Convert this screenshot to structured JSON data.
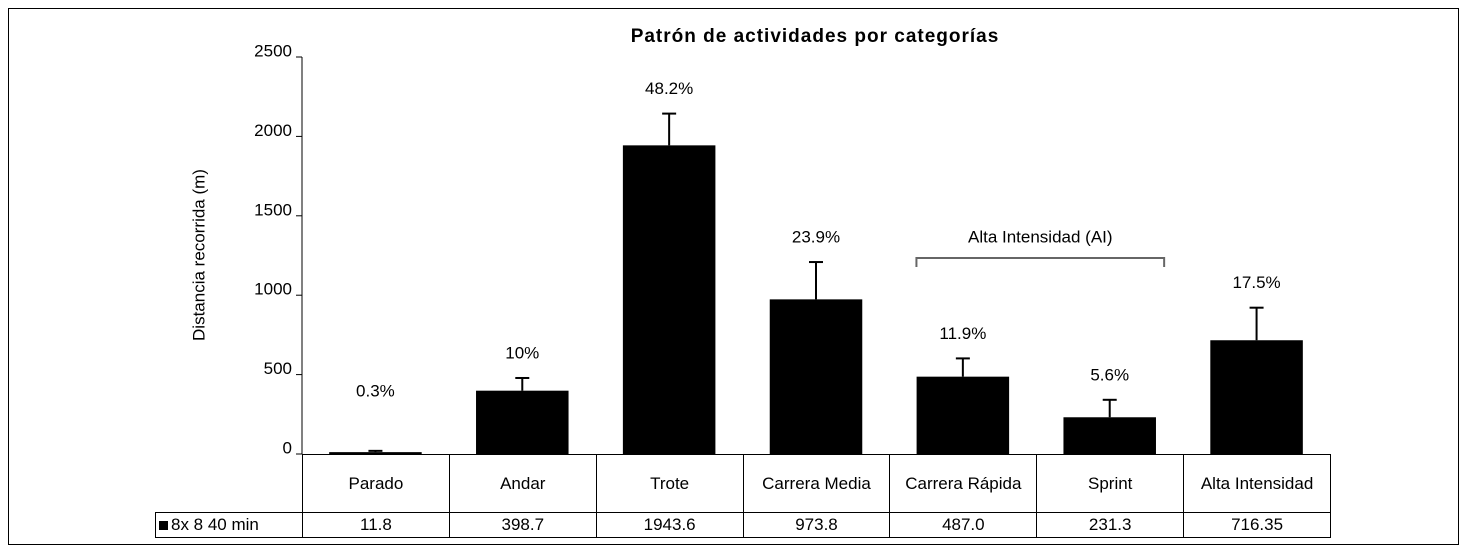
{
  "chart_data": {
    "type": "bar",
    "title": "Patrón de actividades por categorías",
    "y_label": "Distancia recorrida (m)",
    "categories": [
      "Parado",
      "Andar",
      "Trote",
      "Carrera Media",
      "Carrera Rápida",
      "Sprint",
      "Alta Intensidad"
    ],
    "series": [
      {
        "name": "8x 8 40 min",
        "color": "#000000",
        "values": [
          11.8,
          398.7,
          1943.6,
          973.8,
          487.0,
          231.3,
          716.35
        ],
        "value_labels": [
          "11.8",
          "398.7",
          "1943.6",
          "973.8",
          "487.0",
          "231.3",
          "716.35"
        ],
        "errors": [
          8,
          80,
          200,
          235,
          115,
          110,
          205
        ]
      }
    ],
    "percent_labels": [
      "0.3%",
      "10%",
      "48.2%",
      "23.9%",
      "11.9%",
      "5.6%",
      "17.5%"
    ],
    "annotation": "Alta Intensidad (AI)",
    "ylim": [
      0,
      2500
    ],
    "yticks": [
      0,
      500,
      1000,
      1500,
      2000,
      2500
    ]
  }
}
